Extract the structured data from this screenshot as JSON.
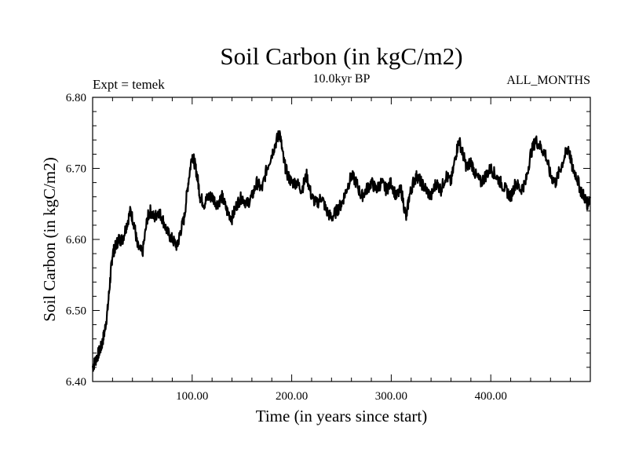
{
  "chart_data": {
    "type": "line",
    "title": "Soil Carbon (in kgC/m2)",
    "subtitle": "10.0kyr BP",
    "left_label": "Expt = temek",
    "right_label": "ALL_MONTHS",
    "xlabel": "Time (in years since start)",
    "ylabel": "Soil Carbon (in kgC/m2)",
    "xlim": [
      0,
      500
    ],
    "ylim": [
      6.4,
      6.8
    ],
    "x_ticks": [
      100,
      200,
      300,
      400
    ],
    "x_tick_labels": [
      "100.00",
      "200.00",
      "300.00",
      "400.00"
    ],
    "y_ticks": [
      6.4,
      6.5,
      6.6,
      6.7,
      6.8
    ],
    "y_tick_labels": [
      "6.40",
      "6.50",
      "6.60",
      "6.70",
      "6.80"
    ],
    "series": [
      {
        "name": "Soil Carbon",
        "color": "#000000",
        "x": [
          0,
          3,
          6,
          9,
          12,
          15,
          18,
          20,
          23,
          26,
          30,
          34,
          38,
          42,
          45,
          50,
          55,
          58,
          62,
          66,
          70,
          75,
          80,
          85,
          88,
          92,
          96,
          100,
          102,
          105,
          108,
          112,
          116,
          120,
          125,
          130,
          135,
          140,
          145,
          150,
          155,
          160,
          165,
          170,
          175,
          180,
          185,
          188,
          192,
          196,
          200,
          205,
          210,
          215,
          220,
          225,
          230,
          235,
          240,
          245,
          250,
          255,
          260,
          265,
          270,
          275,
          280,
          285,
          290,
          295,
          300,
          305,
          310,
          315,
          318,
          322,
          326,
          330,
          335,
          340,
          345,
          350,
          355,
          360,
          365,
          368,
          372,
          376,
          380,
          385,
          390,
          395,
          400,
          405,
          410,
          415,
          420,
          425,
          430,
          435,
          440,
          445,
          450,
          455,
          460,
          465,
          470,
          475,
          478,
          482,
          486,
          490,
          494,
          497,
          500
        ],
        "values": [
          6.42,
          6.43,
          6.44,
          6.45,
          6.47,
          6.5,
          6.55,
          6.58,
          6.59,
          6.6,
          6.6,
          6.62,
          6.64,
          6.62,
          6.59,
          6.58,
          6.63,
          6.64,
          6.63,
          6.64,
          6.63,
          6.61,
          6.6,
          6.59,
          6.61,
          6.63,
          6.68,
          6.72,
          6.71,
          6.69,
          6.66,
          6.65,
          6.66,
          6.66,
          6.65,
          6.66,
          6.64,
          6.63,
          6.65,
          6.66,
          6.65,
          6.66,
          6.68,
          6.67,
          6.7,
          6.72,
          6.74,
          6.75,
          6.71,
          6.69,
          6.68,
          6.68,
          6.67,
          6.69,
          6.66,
          6.65,
          6.66,
          6.64,
          6.63,
          6.64,
          6.65,
          6.67,
          6.69,
          6.68,
          6.66,
          6.67,
          6.68,
          6.67,
          6.68,
          6.67,
          6.68,
          6.66,
          6.67,
          6.63,
          6.66,
          6.68,
          6.69,
          6.68,
          6.67,
          6.66,
          6.68,
          6.67,
          6.69,
          6.68,
          6.72,
          6.74,
          6.72,
          6.7,
          6.71,
          6.69,
          6.68,
          6.69,
          6.7,
          6.69,
          6.68,
          6.67,
          6.66,
          6.68,
          6.67,
          6.68,
          6.72,
          6.74,
          6.73,
          6.72,
          6.69,
          6.68,
          6.7,
          6.72,
          6.73,
          6.7,
          6.69,
          6.67,
          6.66,
          6.65,
          6.66
        ]
      }
    ]
  }
}
